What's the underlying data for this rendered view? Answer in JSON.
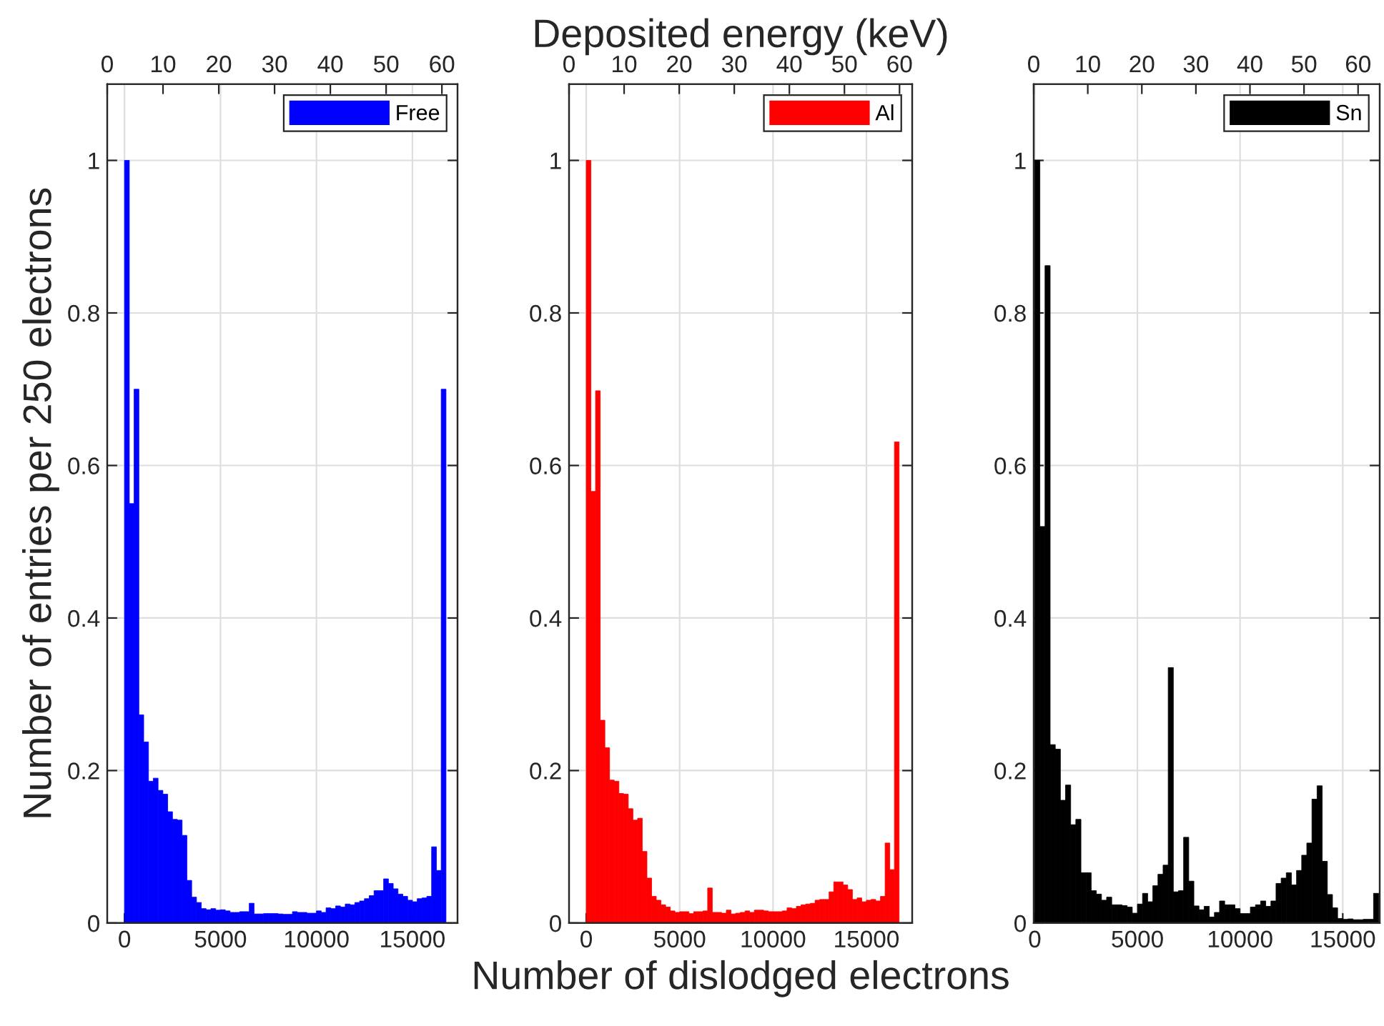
{
  "chart_data": [
    {
      "type": "histogram",
      "ylabel": "Number of entries per 250 electrons",
      "bins": [
        0,
        250,
        500,
        750,
        1000,
        1250,
        1500,
        1750,
        2000,
        2250,
        2500,
        2750,
        3000,
        3250,
        3500,
        3750,
        4000,
        4250,
        4500,
        4750,
        5000,
        5250,
        5500,
        5750,
        6000,
        6250,
        6500,
        6750,
        7000,
        7250,
        7500,
        7750,
        8000,
        8250,
        8500,
        8750,
        9000,
        9250,
        9500,
        9750,
        10000,
        10250,
        10500,
        10750,
        11000,
        11250,
        11500,
        11750,
        12000,
        12250,
        12500,
        12750,
        13000,
        13250,
        13500,
        13750,
        14000,
        14250,
        14500,
        14750,
        15000,
        15250,
        15500,
        15750,
        16000,
        16250,
        16500,
        16750
      ],
      "series": [
        {
          "name": "Free",
          "color": "#0000ff",
          "values": [
            1.0,
            0.55,
            0.7,
            0.273,
            0.2375,
            0.186,
            0.19,
            0.174,
            0.169,
            0.146,
            0.136,
            0.135,
            0.115,
            0.056,
            0.034,
            0.027,
            0.019,
            0.0175,
            0.019,
            0.017,
            0.0175,
            0.016,
            0.014,
            0.014,
            0.015,
            0.015,
            0.026,
            0.012,
            0.012,
            0.0125,
            0.0125,
            0.0125,
            0.012,
            0.0115,
            0.0115,
            0.015,
            0.014,
            0.014,
            0.013,
            0.013,
            0.016,
            0.014,
            0.02,
            0.019,
            0.0225,
            0.021,
            0.025,
            0.024,
            0.027,
            0.029,
            0.032,
            0.036,
            0.0425,
            0.0425,
            0.058,
            0.052,
            0.045,
            0.038,
            0.035,
            0.03,
            0.028,
            0.032,
            0.033,
            0.035,
            0.1,
            0.069,
            0.7
          ]
        }
      ],
      "xlim": [
        -900,
        17350
      ],
      "xticks": [
        0,
        5000,
        10000,
        15000
      ],
      "x2lim": [
        0,
        62.8
      ],
      "x2ticks": [
        0,
        10,
        20,
        30,
        40,
        50,
        60
      ],
      "ylim": [
        0,
        1.1
      ],
      "yticks": [
        0,
        0.2,
        0.4,
        0.6,
        0.8,
        1
      ],
      "grid": true,
      "legend": "top right"
    },
    {
      "type": "histogram",
      "xlabel": "Number of dislodged electrons",
      "x2label": "Deposited energy (keV)",
      "bins": [
        0,
        250,
        500,
        750,
        1000,
        1250,
        1500,
        1750,
        2000,
        2250,
        2500,
        2750,
        3000,
        3250,
        3500,
        3750,
        4000,
        4250,
        4500,
        4750,
        5000,
        5250,
        5500,
        5750,
        6000,
        6250,
        6500,
        6750,
        7000,
        7250,
        7500,
        7750,
        8000,
        8250,
        8500,
        8750,
        9000,
        9250,
        9500,
        9750,
        10000,
        10250,
        10500,
        10750,
        11000,
        11250,
        11500,
        11750,
        12000,
        12250,
        12500,
        12750,
        13000,
        13250,
        13500,
        13750,
        14000,
        14250,
        14500,
        14750,
        15000,
        15250,
        15500,
        15750,
        16000,
        16250,
        16500,
        16750
      ],
      "series": [
        {
          "name": "Al",
          "color": "#ff0000",
          "values": [
            1.0,
            0.566,
            0.698,
            0.266,
            0.23,
            0.1875,
            0.186,
            0.17,
            0.169,
            0.15,
            0.135,
            0.1375,
            0.094,
            0.059,
            0.035,
            0.03,
            0.024,
            0.021,
            0.016,
            0.014,
            0.015,
            0.015,
            0.0125,
            0.015,
            0.015,
            0.016,
            0.046,
            0.014,
            0.014,
            0.013,
            0.017,
            0.012,
            0.013,
            0.014,
            0.016,
            0.014,
            0.017,
            0.017,
            0.016,
            0.015,
            0.015,
            0.015,
            0.016,
            0.02,
            0.019,
            0.022,
            0.024,
            0.025,
            0.026,
            0.03,
            0.031,
            0.031,
            0.041,
            0.054,
            0.054,
            0.05,
            0.044,
            0.031,
            0.033,
            0.028,
            0.03,
            0.031,
            0.029,
            0.035,
            0.105,
            0.07,
            0.631
          ]
        }
      ],
      "xlim": [
        -920,
        17450
      ],
      "xticks": [
        0,
        5000,
        10000,
        15000
      ],
      "x2lim": [
        0,
        62.3
      ],
      "x2ticks": [
        0,
        10,
        20,
        30,
        40,
        50,
        60
      ],
      "ylim": [
        0,
        1.1
      ],
      "yticks": [
        0,
        0.2,
        0.4,
        0.6,
        0.8,
        1
      ],
      "grid": true,
      "legend": "top right"
    },
    {
      "type": "histogram",
      "bins": [
        0,
        250,
        500,
        750,
        1000,
        1250,
        1500,
        1750,
        2000,
        2250,
        2500,
        2750,
        3000,
        3250,
        3500,
        3750,
        4000,
        4250,
        4500,
        4750,
        5000,
        5250,
        5500,
        5750,
        6000,
        6250,
        6500,
        6750,
        7000,
        7250,
        7500,
        7750,
        8000,
        8250,
        8500,
        8750,
        9000,
        9250,
        9500,
        9750,
        10000,
        10250,
        10500,
        10750,
        11000,
        11250,
        11500,
        11750,
        12000,
        12250,
        12500,
        12750,
        13000,
        13250,
        13500,
        13750,
        14000,
        14250,
        14500,
        14750,
        15000,
        15250,
        15500,
        15750,
        16000,
        16250,
        16500,
        16750
      ],
      "series": [
        {
          "name": "Sn",
          "color": "#000000",
          "values": [
            1.0,
            0.52,
            0.862,
            0.234,
            0.228,
            0.161,
            0.181,
            0.129,
            0.136,
            0.066,
            0.066,
            0.0425,
            0.038,
            0.03,
            0.034,
            0.024,
            0.024,
            0.023,
            0.021,
            0.013,
            0.025,
            0.039,
            0.028,
            0.049,
            0.064,
            0.076,
            0.335,
            0.041,
            0.0425,
            0.1125,
            0.055,
            0.0225,
            0.0175,
            0.022,
            0.008,
            0.014,
            0.029,
            0.024,
            0.024,
            0.019,
            0.0125,
            0.0125,
            0.021,
            0.024,
            0.029,
            0.022,
            0.029,
            0.052,
            0.059,
            0.066,
            0.05,
            0.069,
            0.089,
            0.105,
            0.1625,
            0.18,
            0.081,
            0.0375,
            0.02,
            0.006,
            0.005,
            0.0055,
            0.0045,
            0.0045,
            0.005,
            0.005,
            0.039
          ]
        }
      ],
      "xlim": [
        -50,
        16800
      ],
      "xticks": [
        0,
        5000,
        10000,
        15000
      ],
      "x2lim": [
        0,
        64
      ],
      "x2ticks": [
        0,
        10,
        20,
        30,
        40,
        50,
        60
      ],
      "ylim": [
        0,
        1.1
      ],
      "yticks": [
        0,
        0.2,
        0.4,
        0.6,
        0.8,
        1
      ],
      "grid": true,
      "legend": "top right"
    }
  ]
}
